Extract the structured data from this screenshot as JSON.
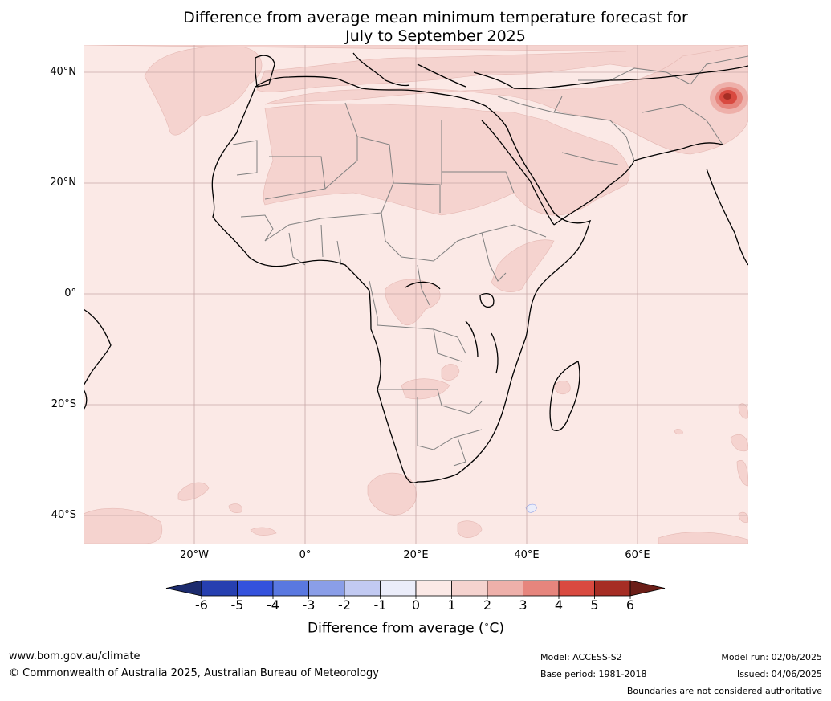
{
  "title": {
    "line1": "Difference from average mean minimum temperature forecast for",
    "line2": "July to September 2025"
  },
  "map": {
    "region": "Africa and Middle East",
    "lat_labels": [
      "40°N",
      "20°N",
      "0°",
      "20°S",
      "40°S"
    ],
    "lon_labels": [
      "20°W",
      "0°",
      "20°E",
      "40°E",
      "60°E"
    ],
    "colors": {
      "background": "#fbe9e6",
      "anomaly_1_2": "#f5d3cf",
      "anomaly_2_3": "#eeb0aa",
      "anomaly_3_4": "#e6857d",
      "anomaly_4_5": "#d94a40",
      "anomaly_5_6": "#a62d24",
      "coast": "#000000",
      "borders": "#808080",
      "gridlines": "#c8a8a8"
    }
  },
  "colorbar": {
    "ticks": [
      "-6",
      "-5",
      "-4",
      "-3",
      "-2",
      "-1",
      "0",
      "1",
      "2",
      "3",
      "4",
      "5",
      "6"
    ],
    "colors": [
      "#1c2b6e",
      "#263fb0",
      "#3452dc",
      "#5a78e0",
      "#8a9ee8",
      "#c2caf2",
      "#ebedfa",
      "#fbe9e6",
      "#f5d3cf",
      "#eeb0aa",
      "#e6857d",
      "#d94a40",
      "#a62d24",
      "#6b1e18"
    ],
    "label": "Difference from average (",
    "label_degree": "∘",
    "label_unit": "C)"
  },
  "footer": {
    "website": "www.bom.gov.au/climate",
    "copyright": "© Commonwealth of Australia 2025, Australian Bureau of Meteorology",
    "model": "Model: ACCESS-S2",
    "base_period": "Base period: 1981-2018",
    "model_run": "Model run: 02/06/2025",
    "issued": "Issued: 04/06/2025",
    "disclaimer": "Boundaries are not considered authoritative"
  }
}
